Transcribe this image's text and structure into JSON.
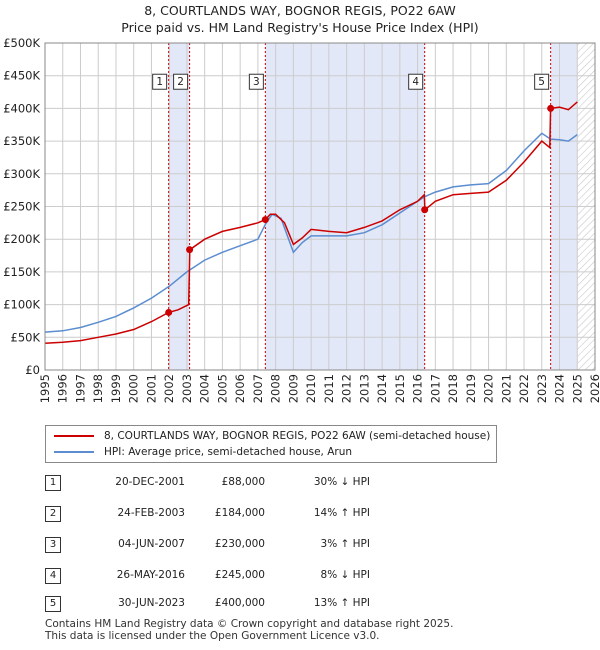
{
  "title": {
    "line1": "8, COURTLANDS WAY, BOGNOR REGIS, PO22 6AW",
    "line2": "Price paid vs. HM Land Registry's House Price Index (HPI)"
  },
  "colors": {
    "property": "#cc0000",
    "hpi": "#5b8dd0",
    "shade": "#e3e8f8",
    "grid": "#cccccc"
  },
  "chart_data": {
    "type": "line",
    "title": "8, COURTLANDS WAY, BOGNOR REGIS, PO22 6AW",
    "subtitle": "Price paid vs. HM Land Registry's House Price Index (HPI)",
    "xlabel": "",
    "ylabel": "",
    "xlim": [
      1995,
      2026
    ],
    "ylim": [
      0,
      500000
    ],
    "x_ticks": [
      "1995",
      "1996",
      "1997",
      "1998",
      "1999",
      "2000",
      "2001",
      "2002",
      "2003",
      "2004",
      "2005",
      "2006",
      "2007",
      "2008",
      "2009",
      "2010",
      "2011",
      "2012",
      "2013",
      "2014",
      "2015",
      "2016",
      "2017",
      "2018",
      "2019",
      "2020",
      "2021",
      "2022",
      "2023",
      "2024",
      "2025",
      "2026"
    ],
    "y_ticks": [
      {
        "value": 0,
        "label": "£0"
      },
      {
        "value": 50000,
        "label": "£50K"
      },
      {
        "value": 100000,
        "label": "£100K"
      },
      {
        "value": 150000,
        "label": "£150K"
      },
      {
        "value": 200000,
        "label": "£200K"
      },
      {
        "value": 250000,
        "label": "£250K"
      },
      {
        "value": 300000,
        "label": "£300K"
      },
      {
        "value": 350000,
        "label": "£350K"
      },
      {
        "value": 400000,
        "label": "£400K"
      },
      {
        "value": 450000,
        "label": "£450K"
      },
      {
        "value": 500000,
        "label": "£500K"
      }
    ],
    "shaded_ranges": [
      [
        2001.97,
        2003.15
      ],
      [
        2007.42,
        2016.4
      ],
      [
        2023.5,
        2025.0
      ]
    ],
    "hatched_range": [
      2025.0,
      2026
    ],
    "series": [
      {
        "name": "8, COURTLANDS WAY, BOGNOR REGIS, PO22 6AW (semi-detached house)",
        "color": "#cc0000",
        "points": [
          [
            1995.0,
            41000
          ],
          [
            1996.0,
            42500
          ],
          [
            1997.0,
            45000
          ],
          [
            1998.0,
            50000
          ],
          [
            1999.0,
            55000
          ],
          [
            2000.0,
            62000
          ],
          [
            2001.0,
            74000
          ],
          [
            2001.97,
            88000
          ],
          [
            2002.5,
            92000
          ],
          [
            2003.1,
            100000
          ],
          [
            2003.16,
            184000
          ],
          [
            2004.0,
            200000
          ],
          [
            2005.0,
            212000
          ],
          [
            2006.0,
            218000
          ],
          [
            2007.0,
            225000
          ],
          [
            2007.42,
            230000
          ],
          [
            2007.7,
            238000
          ],
          [
            2008.0,
            238000
          ],
          [
            2008.5,
            225000
          ],
          [
            2009.0,
            192000
          ],
          [
            2009.5,
            202000
          ],
          [
            2010.0,
            215000
          ],
          [
            2011.0,
            212000
          ],
          [
            2012.0,
            210000
          ],
          [
            2013.0,
            218000
          ],
          [
            2014.0,
            228000
          ],
          [
            2015.0,
            245000
          ],
          [
            2016.0,
            258000
          ],
          [
            2016.38,
            268000
          ],
          [
            2016.41,
            245000
          ],
          [
            2017.0,
            258000
          ],
          [
            2018.0,
            268000
          ],
          [
            2019.0,
            270000
          ],
          [
            2020.0,
            272000
          ],
          [
            2021.0,
            290000
          ],
          [
            2022.0,
            318000
          ],
          [
            2023.0,
            350000
          ],
          [
            2023.45,
            340000
          ],
          [
            2023.5,
            400000
          ],
          [
            2024.0,
            402000
          ],
          [
            2024.5,
            398000
          ],
          [
            2025.0,
            410000
          ]
        ]
      },
      {
        "name": "HPI: Average price, semi-detached house, Arun",
        "color": "#5b8dd0",
        "points": [
          [
            1995.0,
            58000
          ],
          [
            1996.0,
            60000
          ],
          [
            1997.0,
            65000
          ],
          [
            1998.0,
            73000
          ],
          [
            1999.0,
            82000
          ],
          [
            2000.0,
            95000
          ],
          [
            2001.0,
            110000
          ],
          [
            2002.0,
            128000
          ],
          [
            2003.0,
            150000
          ],
          [
            2004.0,
            168000
          ],
          [
            2005.0,
            180000
          ],
          [
            2006.0,
            190000
          ],
          [
            2007.0,
            200000
          ],
          [
            2007.42,
            223000
          ],
          [
            2007.8,
            238000
          ],
          [
            2008.3,
            232000
          ],
          [
            2009.0,
            180000
          ],
          [
            2009.5,
            195000
          ],
          [
            2010.0,
            205000
          ],
          [
            2011.0,
            205000
          ],
          [
            2012.0,
            205000
          ],
          [
            2013.0,
            210000
          ],
          [
            2014.0,
            222000
          ],
          [
            2015.0,
            240000
          ],
          [
            2016.0,
            258000
          ],
          [
            2016.4,
            265000
          ],
          [
            2017.0,
            272000
          ],
          [
            2018.0,
            280000
          ],
          [
            2019.0,
            283000
          ],
          [
            2020.0,
            285000
          ],
          [
            2021.0,
            305000
          ],
          [
            2022.0,
            335000
          ],
          [
            2023.0,
            362000
          ],
          [
            2023.5,
            353000
          ],
          [
            2024.0,
            352000
          ],
          [
            2024.5,
            350000
          ],
          [
            2025.0,
            360000
          ]
        ]
      }
    ],
    "sales": [
      {
        "label": "1",
        "x": 2001.97,
        "value": 88000
      },
      {
        "label": "2",
        "x": 2003.15,
        "value": 184000
      },
      {
        "label": "3",
        "x": 2007.42,
        "value": 230000
      },
      {
        "label": "4",
        "x": 2016.4,
        "value": 245000
      },
      {
        "label": "5",
        "x": 2023.5,
        "value": 400000
      }
    ],
    "marker_label_value": 440000
  },
  "legend": {
    "property_label": "8, COURTLANDS WAY, BOGNOR REGIS, PO22 6AW (semi-detached house)",
    "hpi_label": "HPI: Average price, semi-detached house, Arun"
  },
  "sales_table": [
    {
      "num": "1",
      "date": "20-DEC-2001",
      "price": "£88,000",
      "hpi": "30% ↓ HPI"
    },
    {
      "num": "2",
      "date": "24-FEB-2003",
      "price": "£184,000",
      "hpi": "14% ↑ HPI"
    },
    {
      "num": "3",
      "date": "04-JUN-2007",
      "price": "£230,000",
      "hpi": "3% ↑ HPI"
    },
    {
      "num": "4",
      "date": "26-MAY-2016",
      "price": "£245,000",
      "hpi": "8% ↓ HPI"
    },
    {
      "num": "5",
      "date": "30-JUN-2023",
      "price": "£400,000",
      "hpi": "13% ↑ HPI"
    }
  ],
  "footer": {
    "line1": "Contains HM Land Registry data © Crown copyright and database right 2025.",
    "line2": "This data is licensed under the Open Government Licence v3.0."
  }
}
